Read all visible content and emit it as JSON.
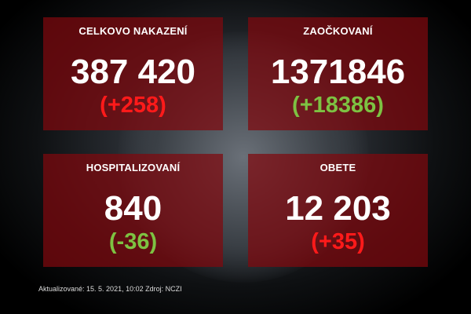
{
  "panels": [
    {
      "title": "CELKOVO NAKAZENÍ",
      "value": "387 420",
      "delta": "(+258)",
      "delta_color": "#ff1a1a"
    },
    {
      "title": "ZAOČKOVANÍ",
      "value": "1371846",
      "delta": "(+18386)",
      "delta_color": "#7dc242"
    },
    {
      "title": "HOSPITALIZOVANÍ",
      "value": "840",
      "delta": "(-36)",
      "delta_color": "#7dc242"
    },
    {
      "title": "OBETE",
      "value": "12 203",
      "delta": "(+35)",
      "delta_color": "#ff1a1a"
    }
  ],
  "footer": "Aktualizované: 15. 5. 2021, 10:02  Zdroj: NCZI"
}
